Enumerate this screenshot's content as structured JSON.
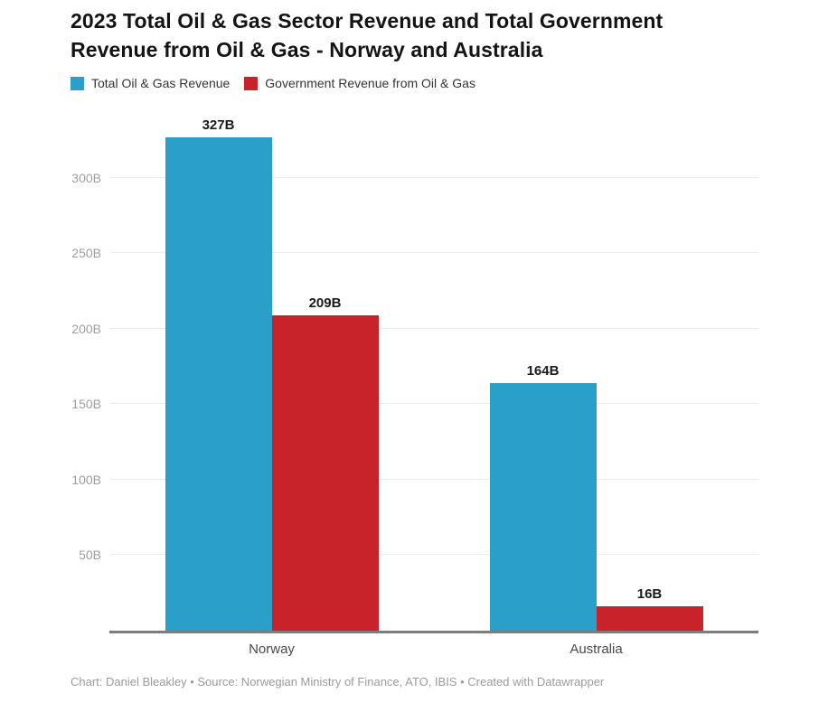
{
  "title": "2023 Total Oil & Gas Sector Revenue and Total Government Revenue from Oil & Gas - Norway and Australia",
  "footer": "Chart: Daniel Bleakley • Source: Norwegian Ministry of Finance, ATO, IBIS • Created with Datawrapper",
  "colors": {
    "total_revenue": "#2aa0c9",
    "government_revenue": "#c8222a",
    "axis_line": "#7d7d7d",
    "gridline": "#ebebeb",
    "tick_label": "#9e9e9e"
  },
  "chart_data": {
    "type": "bar",
    "title": "2023 Total Oil & Gas Sector Revenue and Total Government Revenue from Oil & Gas - Norway and Australia",
    "categories": [
      "Norway",
      "Australia"
    ],
    "series": [
      {
        "name": "Total Oil & Gas Revenue",
        "color": "#2aa0c9",
        "values": [
          327,
          164
        ]
      },
      {
        "name": "Government Revenue from Oil & Gas",
        "color": "#c8222a",
        "values": [
          209,
          16
        ]
      }
    ],
    "value_labels": [
      [
        "327B",
        "164B"
      ],
      [
        "209B",
        "16B"
      ]
    ],
    "unit": "B",
    "xlabel": "",
    "ylabel": "",
    "ylim": [
      0,
      340
    ],
    "yticks": [
      {
        "value": 50,
        "label": "50B"
      },
      {
        "value": 100,
        "label": "100B"
      },
      {
        "value": 150,
        "label": "150B"
      },
      {
        "value": 200,
        "label": "200B"
      },
      {
        "value": 250,
        "label": "250B"
      },
      {
        "value": 300,
        "label": "300B"
      }
    ],
    "grid": true,
    "legend_position": "top"
  }
}
